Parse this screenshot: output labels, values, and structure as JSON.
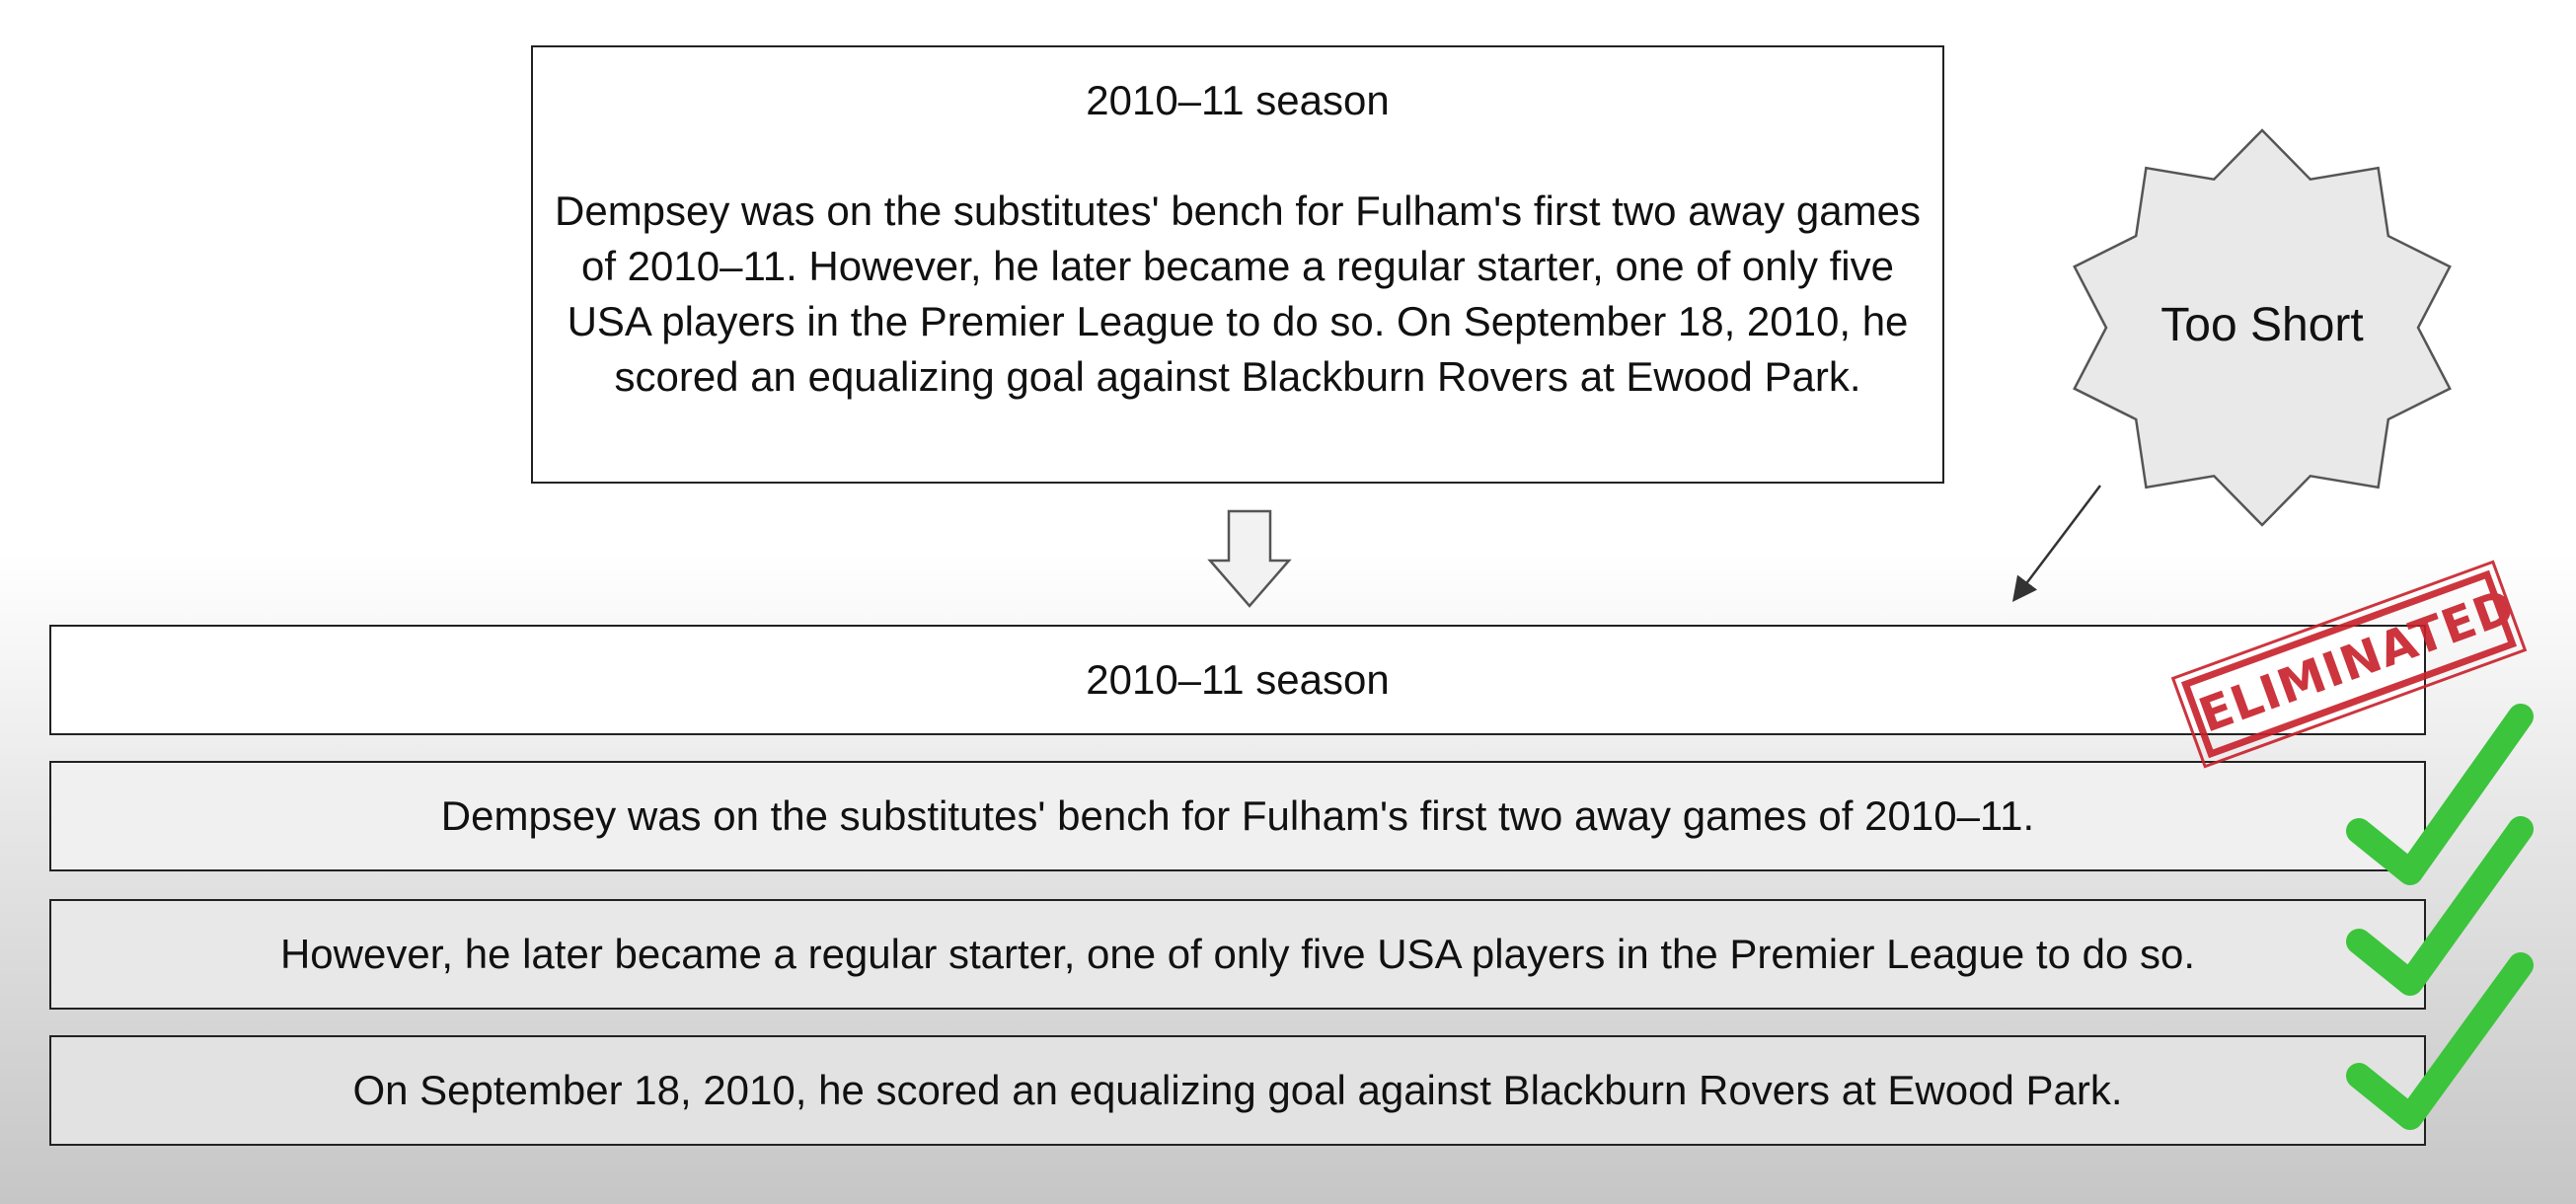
{
  "source": {
    "title": "2010–11 season",
    "body": "Dempsey was on the substitutes' bench for Fulham's first two away games of 2010–11. However, he later became a regular starter, one of only five USA players in the Premier League to do so. On September 18, 2010, he scored an equalizing goal against Blackburn Rovers at Ewood Park."
  },
  "split_rows": [
    {
      "text": "2010–11 season",
      "status": "eliminated"
    },
    {
      "text": "Dempsey was on the substitutes' bench for Fulham's first two away games of 2010–11.",
      "status": "kept"
    },
    {
      "text": "However, he later became a regular starter, one of only five USA players in the Premier League to do so.",
      "status": "kept"
    },
    {
      "text": "On September 18, 2010, he scored an equalizing goal against Blackburn Rovers at Ewood Park.",
      "status": "kept"
    }
  ],
  "callout": {
    "label": "Too Short",
    "icon": "starburst-shape"
  },
  "stamp": {
    "label": "ELIMINATED",
    "color": "#c8202a"
  },
  "checkmark": {
    "icon": "checkmark-icon",
    "color": "#3cc43c"
  }
}
